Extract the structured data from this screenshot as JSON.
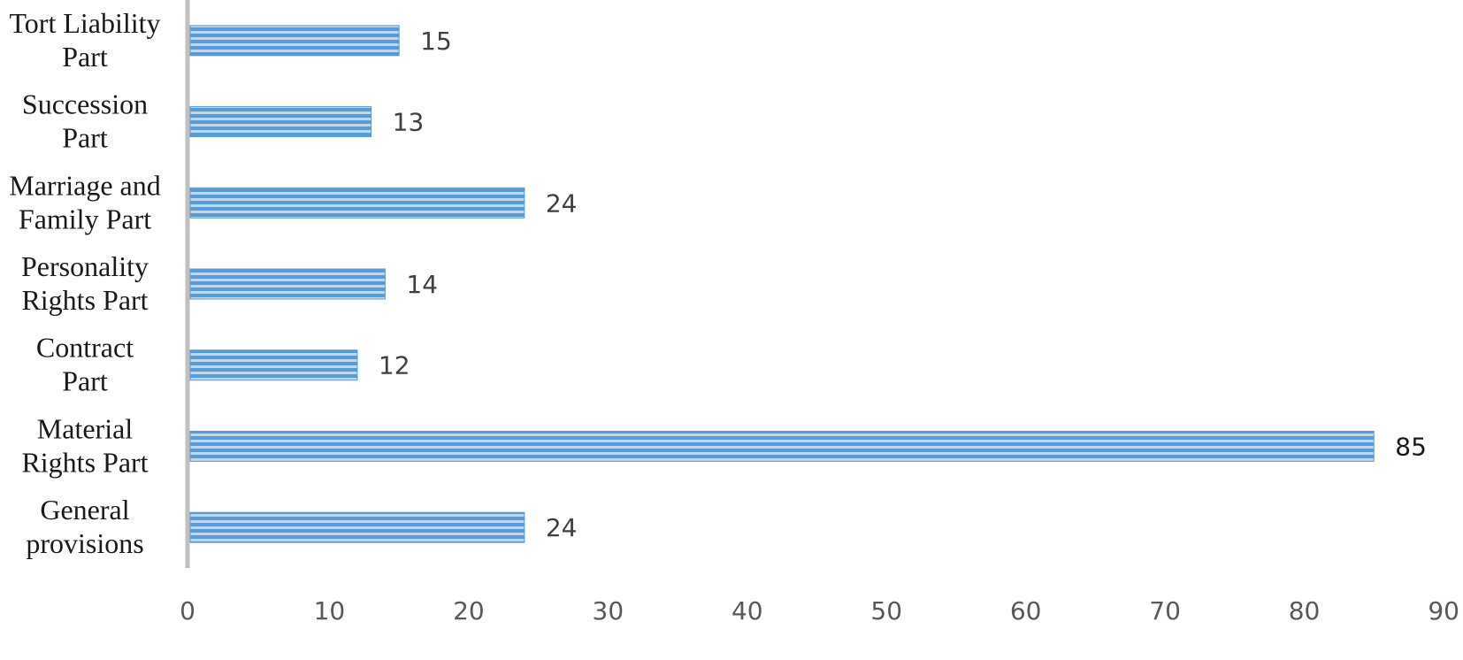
{
  "chart_data": {
    "type": "bar",
    "orientation": "horizontal",
    "categories": [
      "General provisions",
      "Material Rights Part",
      "Contract Part",
      "Personality Rights Part",
      "Marriage and Family Part",
      "Succession Part",
      "Tort Liability Part"
    ],
    "category_lines": [
      [
        "General",
        "provisions"
      ],
      [
        "Material",
        "Rights Part"
      ],
      [
        "Contract",
        "Part"
      ],
      [
        "Personality",
        "Rights Part"
      ],
      [
        "Marriage and",
        "Family Part"
      ],
      [
        "Succession",
        "Part"
      ],
      [
        "Tort Liability",
        "Part"
      ]
    ],
    "values": [
      24,
      85,
      12,
      14,
      24,
      13,
      15
    ],
    "xlim": [
      0,
      90
    ],
    "xticks": [
      0,
      10,
      20,
      30,
      40,
      50,
      60,
      70,
      80,
      90
    ],
    "title": "",
    "xlabel": "",
    "ylabel": "",
    "grid": false,
    "legend": "none",
    "bar_color": "#5b9bd5",
    "bar_stripe_color": "#bdd7ee",
    "axis_color": "#bfbfbf"
  }
}
